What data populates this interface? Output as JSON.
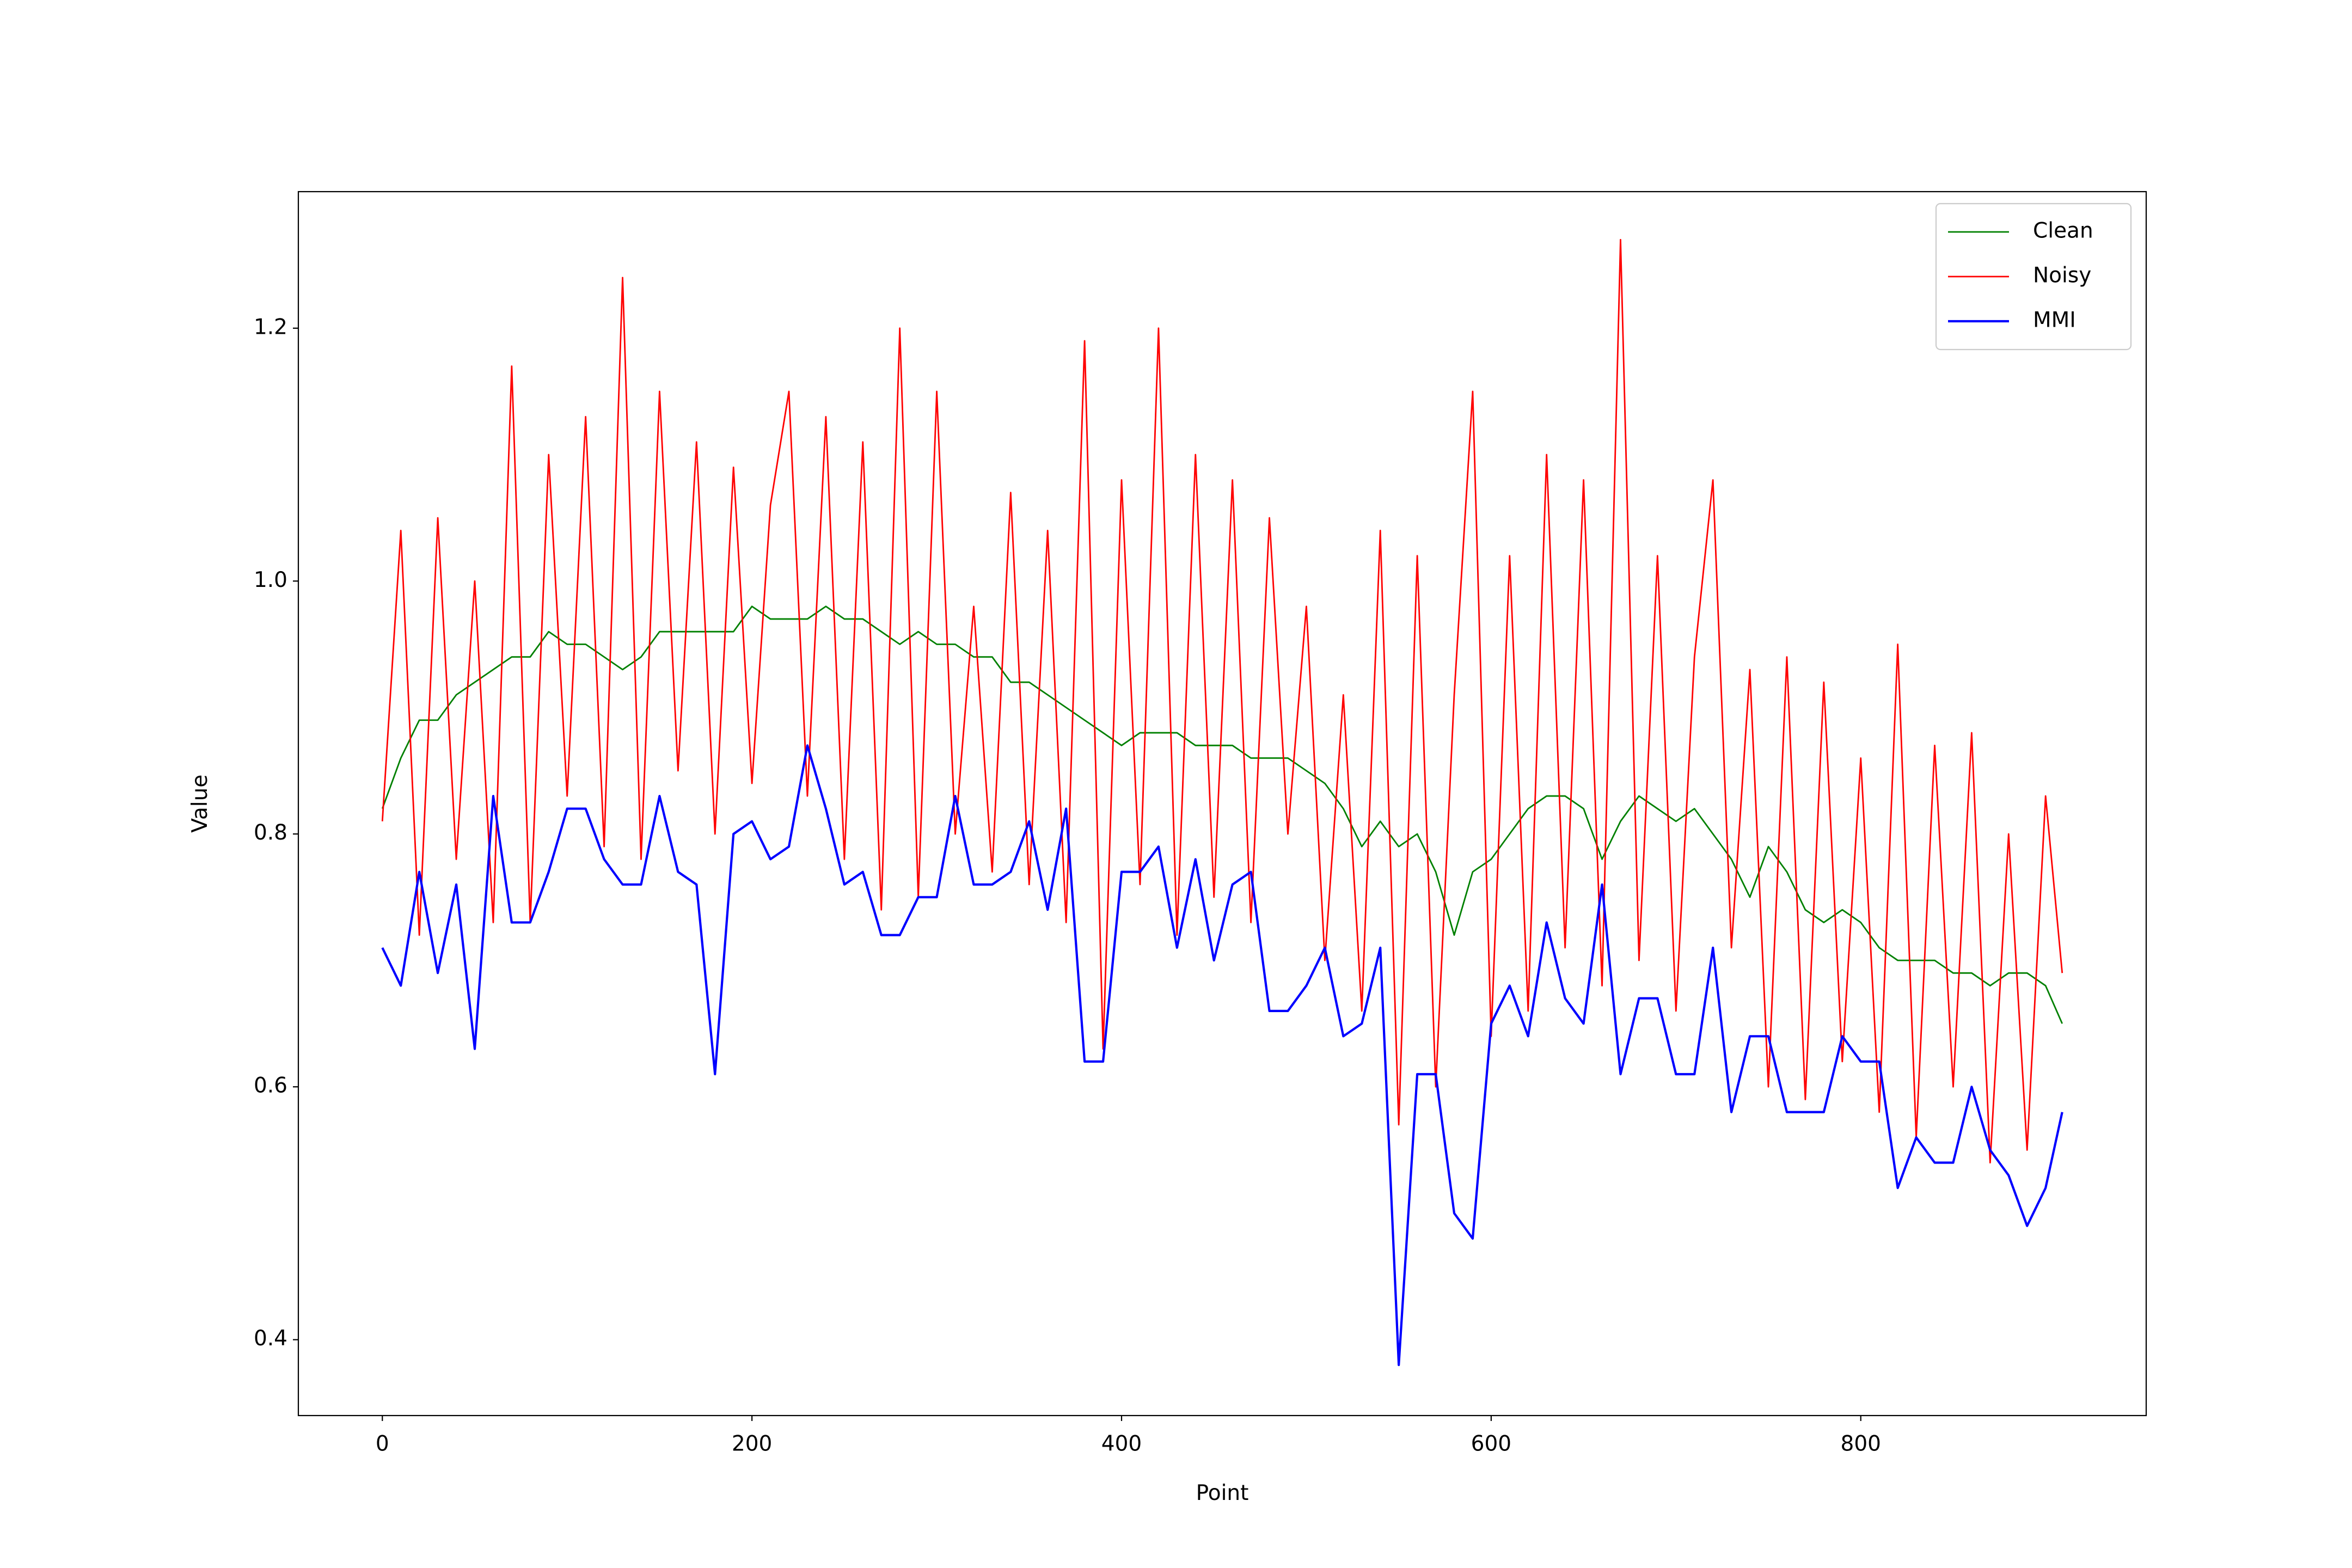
{
  "chart_data": {
    "type": "line",
    "x_label": "Point",
    "y_label": "Value",
    "x": [
      0,
      10,
      20,
      30,
      40,
      50,
      60,
      70,
      80,
      90,
      100,
      110,
      120,
      130,
      140,
      150,
      160,
      170,
      180,
      190,
      200,
      210,
      220,
      230,
      240,
      250,
      260,
      270,
      280,
      290,
      300,
      310,
      320,
      330,
      340,
      350,
      360,
      370,
      380,
      390,
      400,
      410,
      420,
      430,
      440,
      450,
      460,
      470,
      480,
      490,
      500,
      510,
      520,
      530,
      540,
      550,
      560,
      570,
      580,
      590,
      600,
      610,
      620,
      630,
      640,
      650,
      660,
      670,
      680,
      690,
      700,
      710,
      720,
      730,
      740,
      750,
      760,
      770,
      780,
      790,
      800,
      810,
      820,
      830,
      840,
      850,
      860,
      870,
      880,
      890,
      900,
      909
    ],
    "series": [
      {
        "name": "Clean",
        "color": "#008000",
        "width": 1,
        "values": [
          0.82,
          0.86,
          0.89,
          0.89,
          0.91,
          0.92,
          0.93,
          0.94,
          0.94,
          0.96,
          0.95,
          0.95,
          0.94,
          0.93,
          0.94,
          0.96,
          0.96,
          0.96,
          0.96,
          0.96,
          0.98,
          0.97,
          0.97,
          0.97,
          0.98,
          0.97,
          0.97,
          0.96,
          0.95,
          0.96,
          0.95,
          0.95,
          0.94,
          0.94,
          0.92,
          0.92,
          0.91,
          0.9,
          0.89,
          0.88,
          0.87,
          0.88,
          0.88,
          0.88,
          0.87,
          0.87,
          0.87,
          0.86,
          0.86,
          0.86,
          0.85,
          0.84,
          0.82,
          0.79,
          0.81,
          0.79,
          0.8,
          0.77,
          0.72,
          0.77,
          0.78,
          0.8,
          0.82,
          0.83,
          0.83,
          0.82,
          0.78,
          0.81,
          0.83,
          0.82,
          0.81,
          0.82,
          0.8,
          0.78,
          0.75,
          0.79,
          0.77,
          0.74,
          0.73,
          0.74,
          0.73,
          0.71,
          0.7,
          0.7,
          0.7,
          0.69,
          0.69,
          0.68,
          0.69,
          0.69,
          0.68,
          0.65
        ]
      },
      {
        "name": "Noisy",
        "color": "#ff0000",
        "width": 1,
        "values": [
          0.81,
          1.04,
          0.72,
          1.05,
          0.78,
          1.0,
          0.73,
          1.17,
          0.73,
          1.1,
          0.83,
          1.13,
          0.79,
          1.24,
          0.78,
          1.15,
          0.85,
          1.11,
          0.8,
          1.09,
          0.84,
          1.06,
          1.15,
          0.83,
          1.13,
          0.78,
          1.11,
          0.74,
          1.2,
          0.75,
          1.15,
          0.8,
          0.98,
          0.77,
          1.07,
          0.76,
          1.04,
          0.73,
          1.19,
          0.63,
          1.08,
          0.76,
          1.2,
          0.72,
          1.1,
          0.75,
          1.08,
          0.73,
          1.05,
          0.8,
          0.98,
          0.7,
          0.91,
          0.66,
          1.04,
          0.57,
          1.02,
          0.6,
          0.91,
          1.15,
          0.64,
          1.02,
          0.66,
          1.1,
          0.71,
          1.08,
          0.68,
          1.27,
          0.7,
          1.02,
          0.66,
          0.94,
          1.08,
          0.71,
          0.93,
          0.6,
          0.94,
          0.59,
          0.92,
          0.62,
          0.86,
          0.58,
          0.95,
          0.56,
          0.87,
          0.6,
          0.88,
          0.54,
          0.8,
          0.55,
          0.83,
          0.69
        ]
      },
      {
        "name": "MMI",
        "color": "#0000ff",
        "width": 1.5,
        "values": [
          0.71,
          0.68,
          0.77,
          0.69,
          0.76,
          0.63,
          0.83,
          0.73,
          0.73,
          0.77,
          0.82,
          0.82,
          0.78,
          0.76,
          0.76,
          0.83,
          0.77,
          0.76,
          0.61,
          0.8,
          0.81,
          0.78,
          0.79,
          0.87,
          0.82,
          0.76,
          0.77,
          0.72,
          0.72,
          0.75,
          0.75,
          0.83,
          0.76,
          0.76,
          0.77,
          0.81,
          0.74,
          0.82,
          0.62,
          0.62,
          0.77,
          0.77,
          0.79,
          0.71,
          0.78,
          0.7,
          0.76,
          0.77,
          0.66,
          0.66,
          0.68,
          0.71,
          0.64,
          0.65,
          0.71,
          0.38,
          0.61,
          0.61,
          0.5,
          0.48,
          0.65,
          0.68,
          0.64,
          0.73,
          0.67,
          0.65,
          0.76,
          0.61,
          0.67,
          0.67,
          0.61,
          0.61,
          0.71,
          0.58,
          0.64,
          0.64,
          0.58,
          0.58,
          0.58,
          0.64,
          0.62,
          0.62,
          0.52,
          0.56,
          0.54,
          0.54,
          0.6,
          0.55,
          0.53,
          0.49,
          0.52,
          0.58
        ]
      }
    ],
    "xlim": [
      -45.45,
      954.45
    ],
    "ylim": [
      0.34,
      1.308
    ],
    "xticks": [
      0,
      200,
      400,
      600,
      800
    ],
    "yticks": [
      0.4,
      0.6,
      0.8,
      {
        "value": 1,
        "label": "1.0"
      },
      1.2
    ],
    "legend": "upper right"
  }
}
